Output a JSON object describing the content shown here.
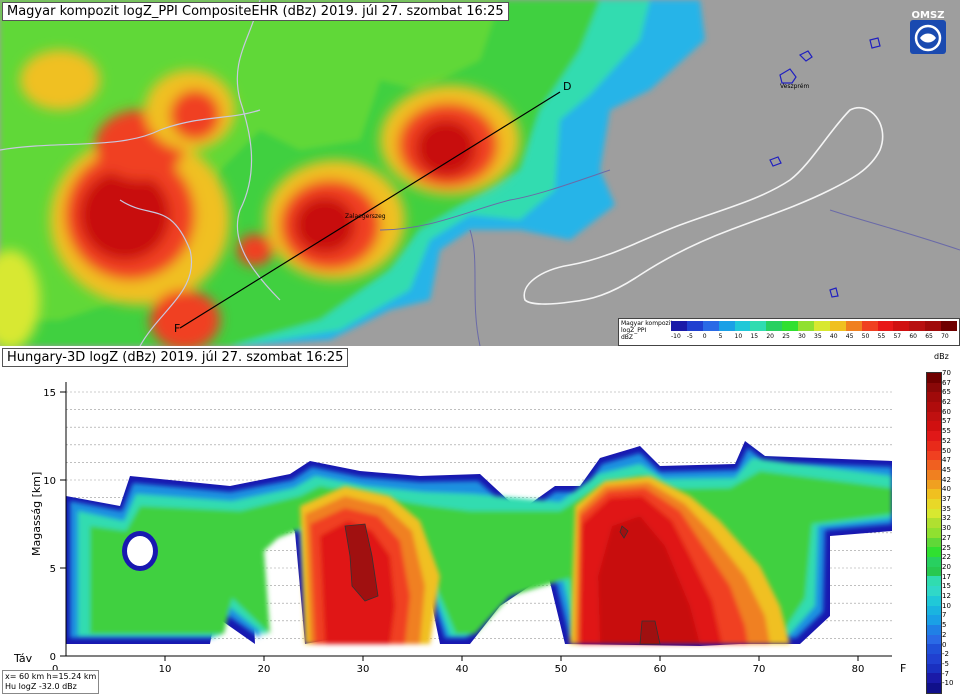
{
  "top_panel": {
    "title": "Magyar kompozit logZ_PPI CompositeEHR (dBz) 2019. júl 27. szombat 16:25",
    "logo_text": "OMSZ",
    "point_start": "F",
    "point_end": "D",
    "city_1": "Zalaegerszeg",
    "city_2": "Veszprém",
    "legend": {
      "line1": "Magyar kompozit",
      "line2": "logZ_PPI",
      "line3": "dBZ",
      "values": [
        "-10",
        "-5",
        "0",
        "5",
        "10",
        "15",
        "20",
        "25",
        "30",
        "35",
        "40",
        "45",
        "50",
        "55",
        "57",
        "60",
        "65",
        "70"
      ],
      "colors": [
        "#1a1aa8",
        "#2040d0",
        "#2a6ae6",
        "#1aa0e6",
        "#20c8d8",
        "#30dcb0",
        "#28d060",
        "#30e030",
        "#90e030",
        "#d8e830",
        "#f0c020",
        "#f08020",
        "#f04020",
        "#e81818",
        "#d01010",
        "#b81010",
        "#a00a0a",
        "#700000"
      ]
    }
  },
  "bottom_panel": {
    "title": "Hungary-3D logZ (dBz) 2019. júl 27. szombat 16:25",
    "y_axis_label": "Magasság [km]",
    "y_ticks": [
      "0",
      "5",
      "10",
      "15"
    ],
    "x_axis_label": "Táv",
    "x_ticks": [
      "10",
      "20",
      "30",
      "40",
      "50",
      "60",
      "70",
      "80"
    ],
    "x_end_label": "F",
    "info_line1": "x= 60 km h=15.24 km",
    "info_line2": "Hu logZ   -32.0 dBz",
    "scale_unit": "dBz",
    "scale_values": [
      "70",
      "67",
      "65",
      "62",
      "60",
      "57",
      "55",
      "52",
      "50",
      "47",
      "45",
      "42",
      "40",
      "37",
      "35",
      "32",
      "30",
      "27",
      "25",
      "22",
      "20",
      "17",
      "15",
      "12",
      "10",
      "7",
      "5",
      "2",
      "0",
      "-2",
      "-5",
      "-7",
      "-10"
    ]
  }
}
